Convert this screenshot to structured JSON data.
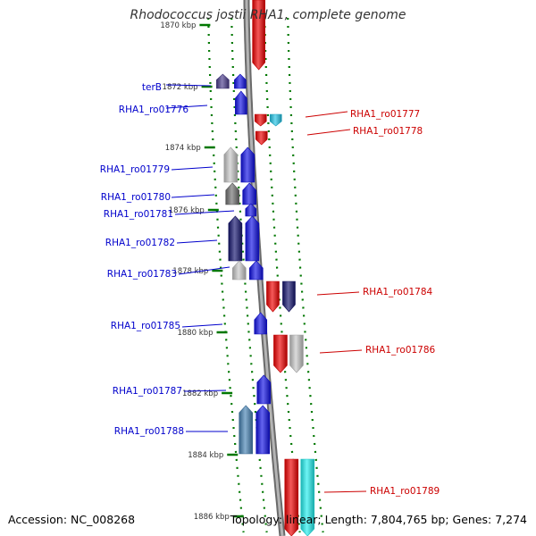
{
  "title": "Rhodococcus jostii RHA1, complete genome",
  "footer": {
    "accession": "Accession: NC_008268",
    "summary": "Topology: linear; Length: 7,804,765 bp; Genes: 7,274"
  },
  "colors": {
    "forward_label": "#0000cc",
    "reverse_label": "#cc0000",
    "track_dots": "#007700",
    "backbone": "#8c8c8c"
  },
  "ticks": [
    "1870 kbp",
    "1872 kbp",
    "1874 kbp",
    "1876 kbp",
    "1878 kbp",
    "1880 kbp",
    "1882 kbp",
    "1884 kbp",
    "1886 kbp"
  ],
  "genes": [
    {
      "label": "",
      "strand": "-",
      "colors": [
        "#f00000"
      ]
    },
    {
      "label": "terB",
      "strand": "+",
      "colors": [
        "#4a3c8c",
        "#1010e6"
      ]
    },
    {
      "label": "RHA1_ro01776",
      "strand": "+",
      "colors": [
        "#1010e6"
      ]
    },
    {
      "label": "RHA1_ro01777",
      "strand": "-",
      "colors": [
        "#f00000",
        "#22c4e6"
      ]
    },
    {
      "label": "RHA1_ro01778",
      "strand": "-",
      "colors": [
        "#f00000"
      ]
    },
    {
      "label": "RHA1_ro01779",
      "strand": "+",
      "colors": [
        "#c8c8c8",
        "#1010e6"
      ]
    },
    {
      "label": "RHA1_ro01780",
      "strand": "+",
      "colors": [
        "#707070",
        "#1010e6"
      ]
    },
    {
      "label": "RHA1_ro01781",
      "strand": "+",
      "colors": [
        "#1010e6"
      ]
    },
    {
      "label": "RHA1_ro01782",
      "strand": "+",
      "colors": [
        "#14146e",
        "#1010e6"
      ]
    },
    {
      "label": "RHA1_ro01783",
      "strand": "+",
      "colors": [
        "#c8c8c8",
        "#1010e6"
      ]
    },
    {
      "label": "RHA1_ro01784",
      "strand": "-",
      "colors": [
        "#f00000",
        "#14146e"
      ]
    },
    {
      "label": "RHA1_ro01785",
      "strand": "+",
      "colors": [
        "#1010e6"
      ]
    },
    {
      "label": "RHA1_ro01786",
      "strand": "-",
      "colors": [
        "#f00000",
        "#c8c8c8"
      ]
    },
    {
      "label": "RHA1_ro01787",
      "strand": "+",
      "colors": [
        "#1010e6"
      ]
    },
    {
      "label": "RHA1_ro01788",
      "strand": "+",
      "colors": [
        "#4682b4",
        "#1010e6"
      ]
    },
    {
      "label": "RHA1_ro01789",
      "strand": "-",
      "colors": [
        "#f00000",
        "#22f0f0"
      ]
    }
  ]
}
